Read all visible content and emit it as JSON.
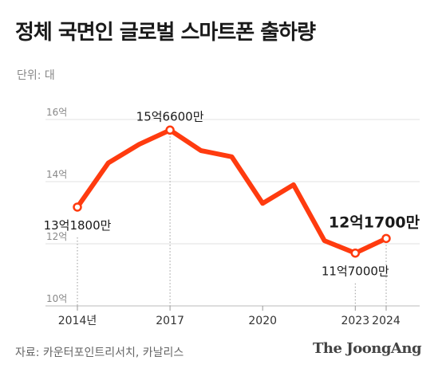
{
  "title": "정체 국면인 글로벌 스마트폰 출하량",
  "unit_label": "단위: 대",
  "source": "자료: 카운터포인트리서치, 카날리스",
  "logo": "The JoongAng",
  "colors": {
    "line": "#ff3b0f",
    "grid": "#e2e2e2",
    "text": "#222222",
    "muted": "#888888"
  },
  "chart_data": {
    "type": "line",
    "x": [
      2014,
      2015,
      2016,
      2017,
      2018,
      2019,
      2020,
      2021,
      2022,
      2023,
      2024
    ],
    "x_tick_values": [
      2014,
      2017,
      2020,
      2023,
      2024
    ],
    "x_tick_labels": [
      "2014년",
      "2017",
      "2020",
      "2023",
      "2024"
    ],
    "y_tick_values": [
      10,
      12,
      14,
      16
    ],
    "y_tick_labels": [
      "10억",
      "12억",
      "14억",
      "16억"
    ],
    "ylim": [
      10,
      16
    ],
    "series": [
      {
        "values": [
          13.18,
          14.6,
          15.2,
          15.66,
          15.0,
          14.8,
          13.3,
          13.9,
          12.1,
          11.7,
          12.17
        ]
      }
    ],
    "annotations": [
      {
        "x": 2014,
        "y": 13.18,
        "text": "13억1800만",
        "pos": "below",
        "emphasis": false
      },
      {
        "x": 2017,
        "y": 15.66,
        "text": "15억6600만",
        "pos": "above",
        "emphasis": false
      },
      {
        "x": 2023,
        "y": 11.7,
        "text": "11억7000만",
        "pos": "below",
        "emphasis": false
      },
      {
        "x": 2024,
        "y": 12.17,
        "text": "12억1700만",
        "pos": "above",
        "emphasis": true
      }
    ]
  }
}
